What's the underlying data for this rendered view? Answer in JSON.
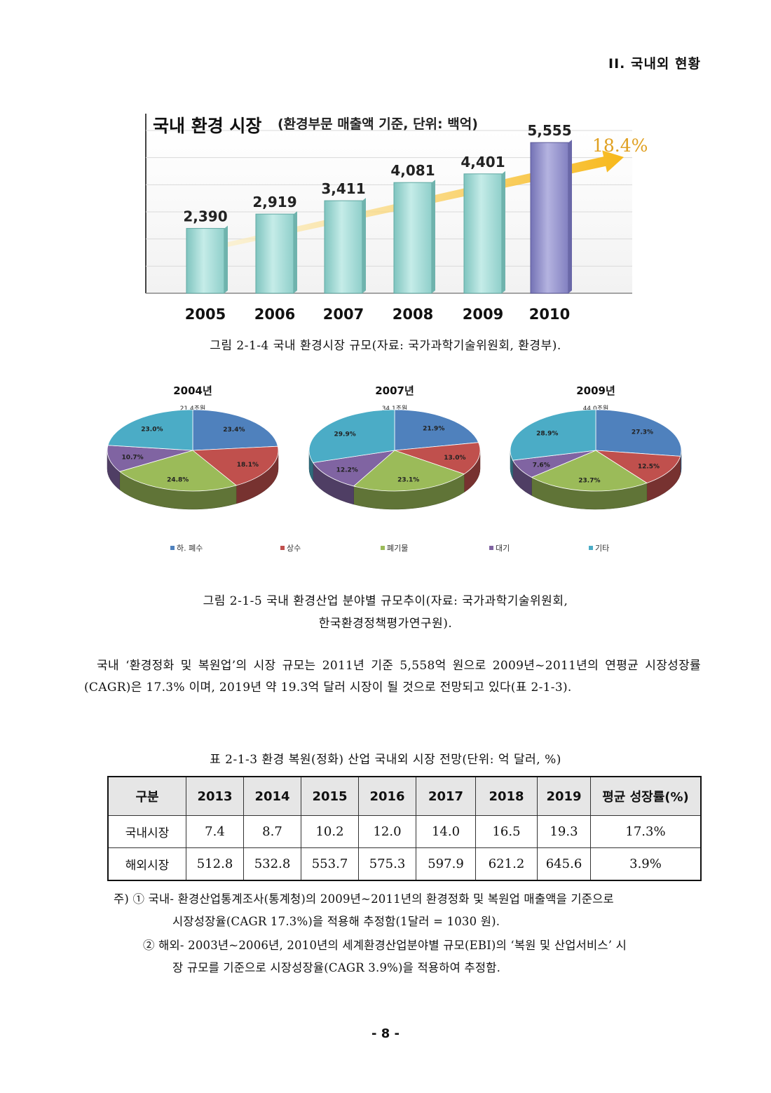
{
  "header": {
    "section": "II. 국내외 현황"
  },
  "bar_figure": {
    "title_main": "국내 환경 시장",
    "title_sub": "(환경부문 매출액 기준, 단위: 백억)",
    "growth_label": "18.4%",
    "caption": "그림 2-1-4 국내 환경시장 규모(자료: 국가과학기술위원회, 환경부)."
  },
  "pie_figure": {
    "legend": [
      "하. 폐수",
      "상수",
      "폐기물",
      "대기",
      "기타"
    ],
    "caption_line1": "그림 2-1-5 국내 환경산업 분야별 규모추이(자료: 국가과학기술위원회,",
    "caption_line2": "한국환경정책평가연구원)."
  },
  "chart_data": [
    {
      "type": "bar",
      "title": "국내 환경 시장",
      "subtitle": "(환경부문 매출액 기준, 단위: 백억)",
      "categories": [
        "2005",
        "2006",
        "2007",
        "2008",
        "2009",
        "2010"
      ],
      "values": [
        2390,
        2919,
        3411,
        4081,
        4401,
        5555
      ],
      "value_labels": [
        "2,390",
        "2,919",
        "3,411",
        "4,081",
        "4,401",
        "5,555"
      ],
      "annotation": "18.4%",
      "ylim": [
        0,
        6000
      ],
      "grid": true,
      "colors": [
        "#9fd8d3",
        "#9fd8d3",
        "#9fd8d3",
        "#9fd8d3",
        "#9fd8d3",
        "#8e8cc8"
      ]
    },
    {
      "type": "pie",
      "title": "2004년",
      "total": "21.4조원",
      "labels": [
        "하. 폐수",
        "상수",
        "폐기물",
        "대기",
        "기타"
      ],
      "values": [
        23.4,
        18.1,
        24.8,
        10.7,
        23.0
      ],
      "value_labels": [
        "23.4%",
        "18.1%",
        "24.8%",
        "10.7%",
        "23.0%"
      ]
    },
    {
      "type": "pie",
      "title": "2007년",
      "total": "34.1조원",
      "labels": [
        "하. 폐수",
        "상수",
        "폐기물",
        "대기",
        "기타"
      ],
      "values": [
        21.9,
        13.0,
        23.1,
        12.2,
        29.9
      ],
      "value_labels": [
        "21.9%",
        "13.0%",
        "23.1%",
        "12.2%",
        "29.9%"
      ]
    },
    {
      "type": "pie",
      "title": "2009년",
      "total": "44.0조원",
      "labels": [
        "하. 폐수",
        "상수",
        "폐기물",
        "대기",
        "기타"
      ],
      "values": [
        27.3,
        12.5,
        23.7,
        7.6,
        28.9
      ],
      "value_labels": [
        "27.3%",
        "12.5%",
        "23.7%",
        "7.6%",
        "28.9%"
      ]
    }
  ],
  "pie_colors": [
    "#4f81bd",
    "#c0504d",
    "#9bbb59",
    "#8064a2",
    "#4bacc6"
  ],
  "paragraph": "국내 ‘환경정화 및 복원업’의 시장 규모는 2011년 기준 5,558억 원으로 2009년~2011년의 연평균 시장성장률(CAGR)은 17.3% 이며, 2019년 약 19.3억 달러 시장이 될 것으로 전망되고 있다(표 2-1-3).",
  "table": {
    "caption": "표 2-1-3 환경 복원(정화) 산업 국내외 시장 전망(단위: 억 달러, %)",
    "headers": [
      "구분",
      "2013",
      "2014",
      "2015",
      "2016",
      "2017",
      "2018",
      "2019",
      "평균 성장률(%)"
    ],
    "rows": [
      [
        "국내시장",
        "7.4",
        "8.7",
        "10.2",
        "12.0",
        "14.0",
        "16.5",
        "19.3",
        "17.3%"
      ],
      [
        "해외시장",
        "512.8",
        "532.8",
        "553.7",
        "575.3",
        "597.9",
        "621.2",
        "645.6",
        "3.9%"
      ]
    ]
  },
  "notes": {
    "n1_line1": "주) ① 국내- 환경산업통계조사(통계청)의 2009년~2011년의 환경정화 및 복원업 매출액을 기준으로",
    "n1_line2": "시장성장율(CAGR 17.3%)을 적용해 추정함(1달러 = 1030 원).",
    "n2_line1": "② 해외- 2003년~2006년, 2010년의 세계환경산업분야별 규모(EBI)의 ‘복원 및 산업서비스’ 시",
    "n2_line2": "장 규모를 기준으로 시장성장율(CAGR 3.9%)을 적용하여 추정함."
  },
  "page_number": "- 8 -"
}
